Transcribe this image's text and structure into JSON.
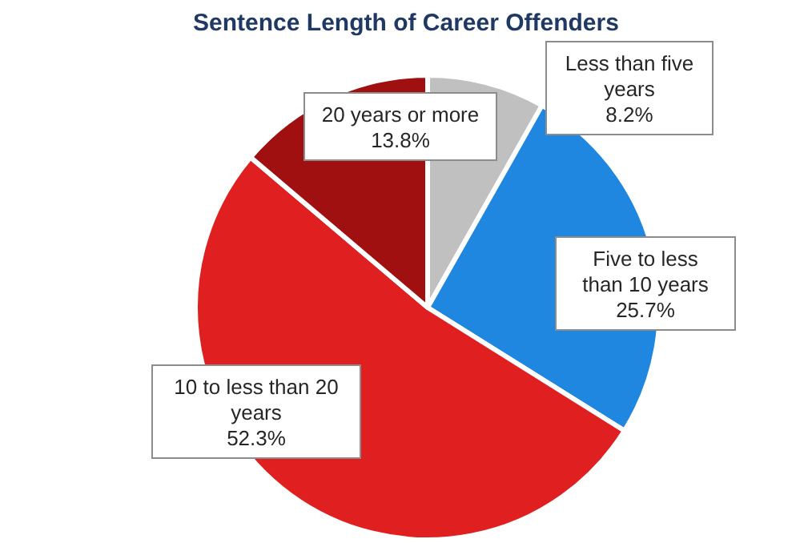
{
  "chart_data": {
    "type": "pie",
    "title": "Sentence Length of Career Offenders",
    "categories": [
      "Less than five years",
      "Five to less than 10 years",
      "10 to less than 20 years",
      "20 years or more"
    ],
    "values": [
      8.2,
      25.7,
      52.3,
      13.8
    ],
    "colors": [
      "#c0c0c0",
      "#1f87e0",
      "#e02020",
      "#a01010"
    ],
    "value_labels": [
      "8.2%",
      "25.7%",
      "52.3%",
      "13.8%"
    ]
  }
}
